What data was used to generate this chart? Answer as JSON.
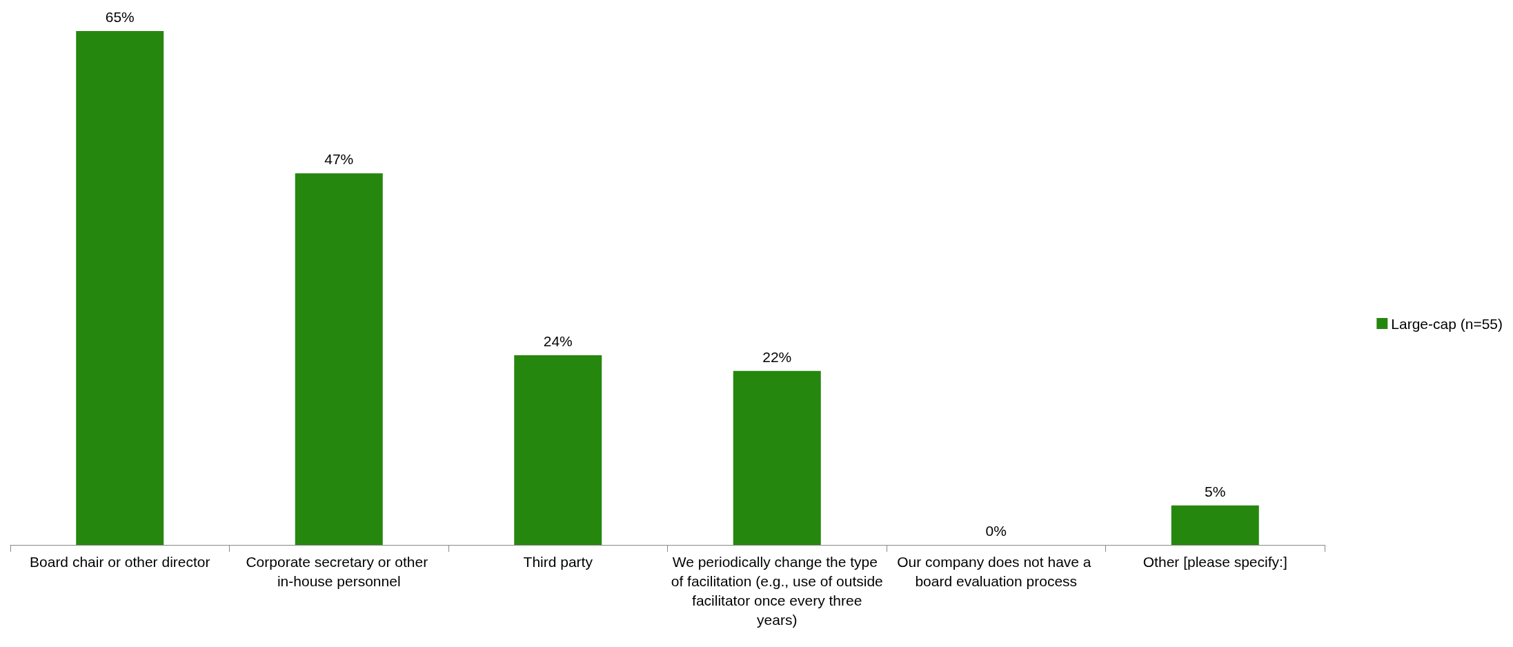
{
  "chart_data": {
    "type": "bar",
    "categories": [
      "Board chair or other director",
      "Corporate secretary or other in-house personnel",
      "Third party",
      "We periodically change the type of facilitation (e.g., use of outside facilitator once every three years)",
      "Our company does not have a board evaluation process",
      "Other [please specify:]"
    ],
    "series": [
      {
        "name": "Large-cap (n=55)",
        "color": "#26870f",
        "values": [
          65,
          47,
          24,
          22,
          0,
          5
        ],
        "value_labels": [
          "65%",
          "47%",
          "24%",
          "22%",
          "0%",
          "5%"
        ]
      }
    ],
    "legend": "right",
    "grid": false
  }
}
